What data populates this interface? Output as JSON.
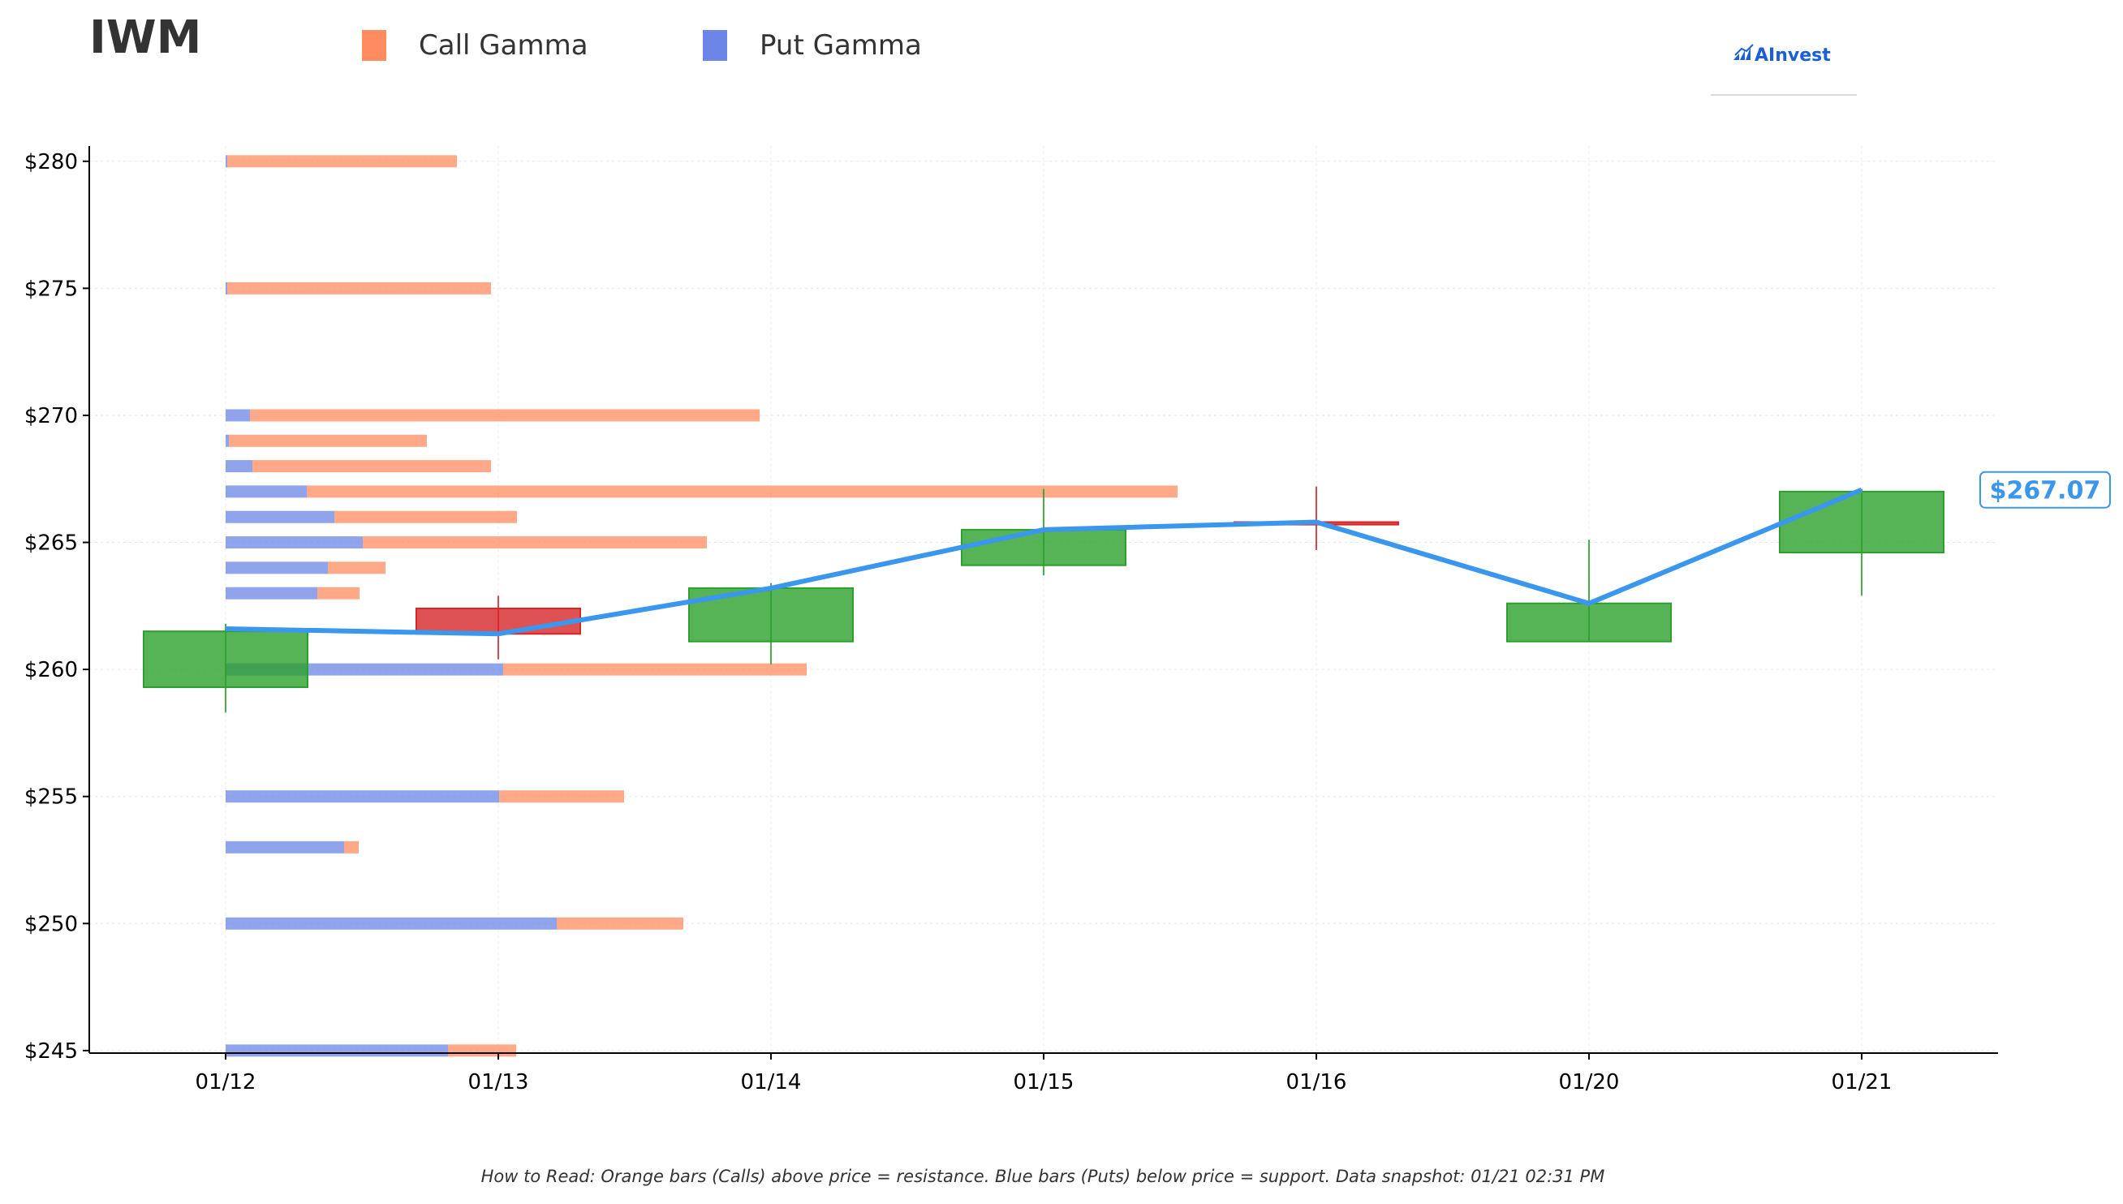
{
  "title": "IWM",
  "legend": [
    {
      "label": "Call Gamma",
      "color": "#ff8c61"
    },
    {
      "label": "Put Gamma",
      "color": "#6b86e6"
    }
  ],
  "logo": {
    "text": "AInvest",
    "icon": "ainvest-logo-icon"
  },
  "footnote": "How to Read: Orange bars (Calls) above price = resistance. Blue bars (Puts) below price = support. Data snapshot: 01/21 02:31 PM",
  "price_label": "$267.07",
  "colors": {
    "call": "#ff8c61",
    "put": "#6b86e6",
    "up": "#2ca02c",
    "down": "#d62728",
    "price_line": "#3b97ee"
  },
  "chart_data": {
    "type": "candlestick",
    "x_categories": [
      "01/12",
      "01/13",
      "01/14",
      "01/15",
      "01/16",
      "01/20",
      "01/21"
    ],
    "y_ticks": [
      245,
      250,
      255,
      260,
      265,
      270,
      275,
      280
    ],
    "y_tick_labels": [
      "$245",
      "$250",
      "$255",
      "$260",
      "$265",
      "$270",
      "$275",
      "$280"
    ],
    "ylim": [
      244.9,
      280.6
    ],
    "grid": true,
    "candles": [
      {
        "date": "01/12",
        "open": 259.3,
        "close": 261.5,
        "high": 261.8,
        "low": 258.3,
        "direction": "up"
      },
      {
        "date": "01/13",
        "open": 262.4,
        "close": 261.4,
        "high": 262.9,
        "low": 260.4,
        "direction": "down"
      },
      {
        "date": "01/14",
        "open": 261.1,
        "close": 263.2,
        "high": 263.4,
        "low": 260.2,
        "direction": "up"
      },
      {
        "date": "01/15",
        "open": 264.1,
        "close": 265.5,
        "high": 267.1,
        "low": 263.7,
        "direction": "up"
      },
      {
        "date": "01/16",
        "open": 265.8,
        "close": 265.7,
        "high": 267.2,
        "low": 264.7,
        "direction": "down"
      },
      {
        "date": "01/20",
        "open": 261.1,
        "close": 262.6,
        "high": 265.1,
        "low": 261.1,
        "direction": "up"
      },
      {
        "date": "01/21",
        "open": 264.6,
        "close": 267.0,
        "high": 267.1,
        "low": 262.9,
        "direction": "up"
      }
    ],
    "price_line": [
      {
        "date": "01/12",
        "price": 261.6
      },
      {
        "date": "01/13",
        "price": 261.4
      },
      {
        "date": "01/14",
        "price": 263.2
      },
      {
        "date": "01/15",
        "price": 265.5
      },
      {
        "date": "01/16",
        "price": 265.8
      },
      {
        "date": "01/20",
        "price": 262.6
      },
      {
        "date": "01/21",
        "price": 267.07
      }
    ],
    "gamma_series": [
      {
        "name": "Put Gamma",
        "unit": "relative"
      },
      {
        "name": "Call Gamma",
        "unit": "relative"
      }
    ],
    "gamma_levels": [
      {
        "strike": 280,
        "put": 2,
        "call": 283
      },
      {
        "strike": 275,
        "put": 2,
        "call": 325
      },
      {
        "strike": 270,
        "put": 30,
        "call": 628
      },
      {
        "strike": 269,
        "put": 4,
        "call": 244
      },
      {
        "strike": 268,
        "put": 33,
        "call": 294
      },
      {
        "strike": 267,
        "put": 100,
        "call": 1073
      },
      {
        "strike": 266,
        "put": 134,
        "call": 225
      },
      {
        "strike": 265,
        "put": 169,
        "call": 424
      },
      {
        "strike": 264,
        "put": 126,
        "call": 71
      },
      {
        "strike": 263,
        "put": 113,
        "call": 52
      },
      {
        "strike": 260,
        "put": 342,
        "call": 374
      },
      {
        "strike": 255,
        "put": 337,
        "call": 154
      },
      {
        "strike": 253,
        "put": 146,
        "call": 18
      },
      {
        "strike": 250,
        "put": 408,
        "call": 156
      },
      {
        "strike": 245,
        "put": 274,
        "call": 84
      }
    ]
  }
}
